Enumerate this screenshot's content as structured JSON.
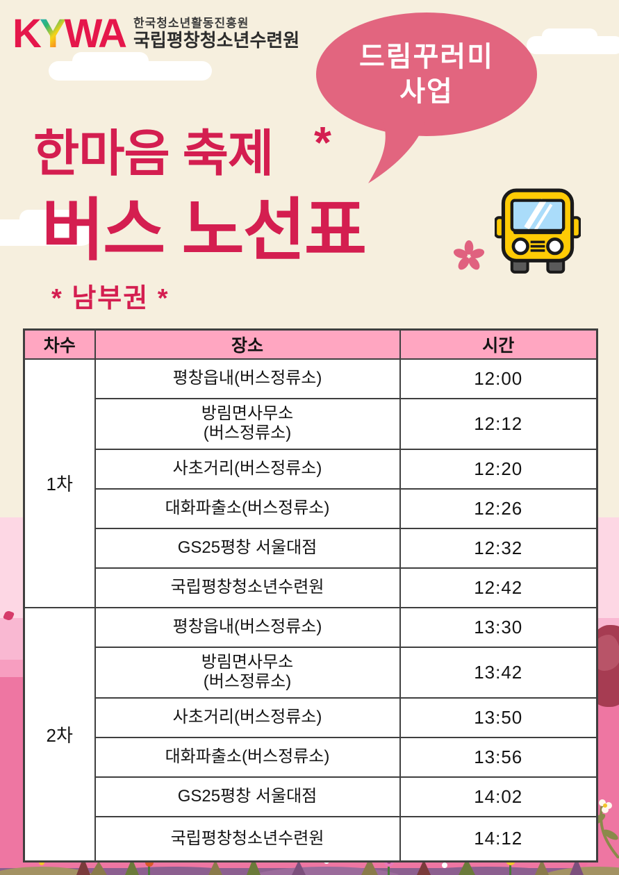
{
  "logo": {
    "k": "K",
    "y": "Y",
    "wa": "WA",
    "org_line1": "한국청소년활동진흥원",
    "org_line2": "국립평창청소년수련원"
  },
  "bubble": {
    "line1": "드림꾸러미",
    "line2": "사업"
  },
  "title": {
    "line1": "한마음 축제",
    "deco_asterisk": "*",
    "line2": "버스 노선표",
    "region": "* 남부권 *"
  },
  "table": {
    "headers": [
      "차수",
      "장소",
      "시간"
    ],
    "groups": [
      {
        "round": "1차",
        "stops": [
          {
            "place": "평창읍내(버스정류소)",
            "time": "12:00"
          },
          {
            "place": "방림면사무소\n(버스정류소)",
            "time": "12:12"
          },
          {
            "place": "사초거리(버스정류소)",
            "time": "12:20"
          },
          {
            "place": "대화파출소(버스정류소)",
            "time": "12:26"
          },
          {
            "place": "GS25평창 서울대점",
            "time": "12:32"
          },
          {
            "place": "국립평창청소년수련원",
            "time": "12:42"
          }
        ]
      },
      {
        "round": "2차",
        "stops": [
          {
            "place": "평창읍내(버스정류소)",
            "time": "13:30"
          },
          {
            "place": "방림면사무소\n(버스정류소)",
            "time": "13:42"
          },
          {
            "place": "사초거리(버스정류소)",
            "time": "13:50"
          },
          {
            "place": "대화파출소(버스정류소)",
            "time": "13:56"
          },
          {
            "place": "GS25평창 서울대점",
            "time": "14:02"
          },
          {
            "place": "국립평창청소년수련원",
            "time": "14:12"
          }
        ]
      }
    ]
  },
  "colors": {
    "crimson": "#d41e50",
    "logo_red": "#e5174b",
    "bubble_pink": "#e2657f",
    "header_pink": "#ffa6c1",
    "hot_pink": "#ee76a2",
    "light_pink": "#fdd7e4",
    "cream": "#f6efde",
    "berry": "#a63c52"
  }
}
